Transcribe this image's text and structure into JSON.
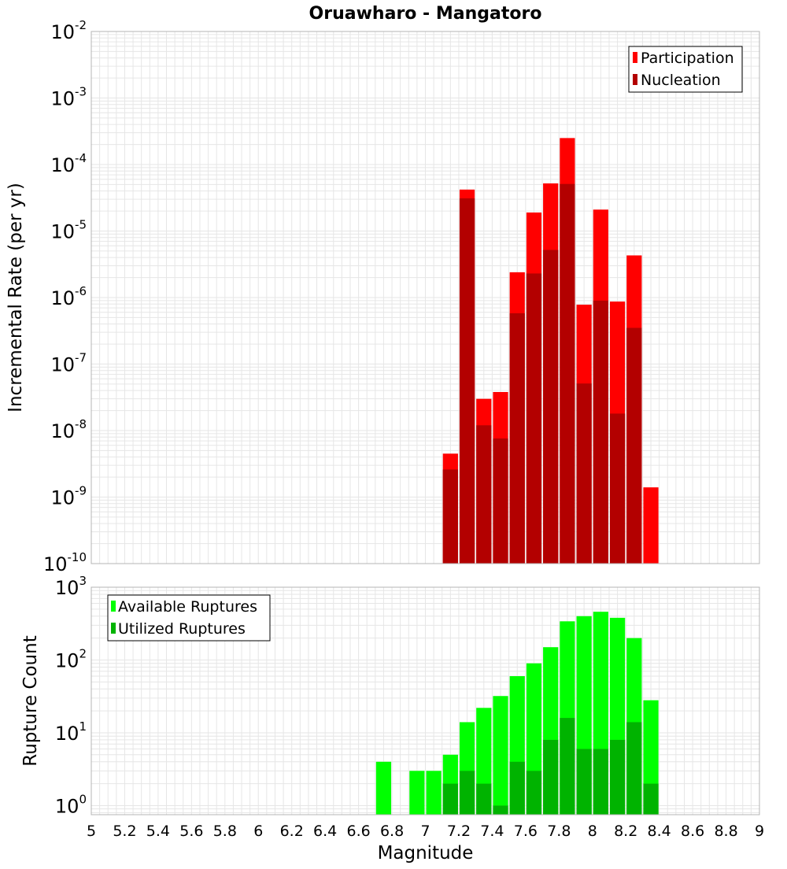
{
  "colors": {
    "participation": "#ff0000",
    "nucleation": "#b30000",
    "available": "#00ff00",
    "utilized": "#00b300",
    "grid": "#e6e6e6",
    "frame": "#b4b4b4"
  },
  "chart_data": [
    {
      "type": "bar",
      "title": "Oruawharo - Mangatoro",
      "xlabel": "",
      "ylabel": "Incremental Rate (per yr)",
      "yscale": "log",
      "xlim": [
        5,
        9
      ],
      "ylim": [
        1e-10,
        0.01
      ],
      "y_tick_labels": [
        {
          "base": "10",
          "exp": "-10"
        },
        {
          "base": "10",
          "exp": "-9"
        },
        {
          "base": "10",
          "exp": "-8"
        },
        {
          "base": "10",
          "exp": "-7"
        },
        {
          "base": "10",
          "exp": "-6"
        },
        {
          "base": "10",
          "exp": "-5"
        },
        {
          "base": "10",
          "exp": "-4"
        },
        {
          "base": "10",
          "exp": "-3"
        },
        {
          "base": "10",
          "exp": "-2"
        }
      ],
      "legend": {
        "placement": "top-right",
        "entries": [
          "Participation",
          "Nucleation"
        ]
      },
      "grid": true,
      "x": [
        7.15,
        7.25,
        7.35,
        7.45,
        7.55,
        7.65,
        7.75,
        7.85,
        7.95,
        8.05,
        8.15,
        8.25,
        8.35
      ],
      "series": [
        {
          "name": "Participation",
          "values": [
            4.5e-09,
            4.2e-05,
            3e-08,
            3.8e-08,
            2.4e-06,
            1.9e-05,
            5.2e-05,
            0.00025,
            7.8e-07,
            2.1e-05,
            8.7e-07,
            4.3e-06,
            1.4e-09
          ]
        },
        {
          "name": "Nucleation",
          "values": [
            2.6e-09,
            3.1e-05,
            1.2e-08,
            7.6e-09,
            5.8e-07,
            2.3e-06,
            5.2e-06,
            5.1e-05,
            5.1e-08,
            9e-07,
            1.8e-08,
            3.5e-07,
            null
          ]
        }
      ]
    },
    {
      "type": "bar",
      "title": "",
      "xlabel": "Magnitude",
      "ylabel": "Rupture Count",
      "yscale": "log",
      "xlim": [
        5,
        9
      ],
      "ylim": [
        0.75,
        1000
      ],
      "x_tick_labels": [
        "5",
        "5.2",
        "5.4",
        "5.6",
        "5.8",
        "6",
        "6.2",
        "6.4",
        "6.6",
        "6.8",
        "7",
        "7.2",
        "7.4",
        "7.6",
        "7.8",
        "8",
        "8.2",
        "8.4",
        "8.6",
        "8.8",
        "9"
      ],
      "y_tick_labels": [
        {
          "base": "10",
          "exp": "0"
        },
        {
          "base": "10",
          "exp": "1"
        },
        {
          "base": "10",
          "exp": "2"
        },
        {
          "base": "10",
          "exp": "3"
        }
      ],
      "legend": {
        "placement": "top-left",
        "entries": [
          "Available Ruptures",
          "Utilized Ruptures"
        ]
      },
      "grid": true,
      "x": [
        6.75,
        6.95,
        7.05,
        7.15,
        7.25,
        7.35,
        7.45,
        7.55,
        7.65,
        7.75,
        7.85,
        7.95,
        8.05,
        8.15,
        8.25,
        8.35
      ],
      "series": [
        {
          "name": "Available Ruptures",
          "values": [
            4,
            3,
            3,
            5,
            14,
            22,
            32,
            60,
            90,
            150,
            340,
            400,
            460,
            380,
            200,
            28
          ]
        },
        {
          "name": "Utilized Ruptures",
          "values": [
            null,
            null,
            null,
            2,
            3,
            2,
            1,
            4,
            3,
            8,
            16,
            6,
            6,
            8,
            14,
            2
          ]
        }
      ]
    }
  ]
}
